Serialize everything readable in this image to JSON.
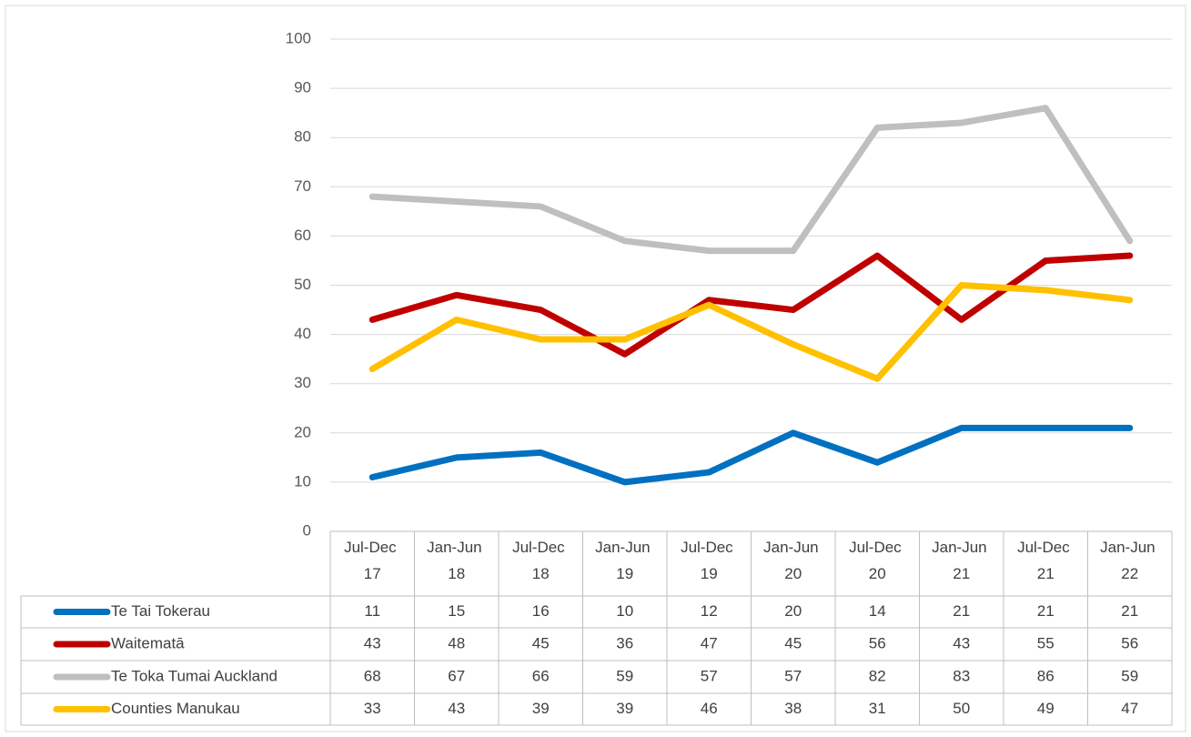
{
  "chart_data": {
    "type": "line",
    "categories": [
      "Jul-Dec 17",
      "Jan-Jun 18",
      "Jul-Dec 18",
      "Jan-Jun 19",
      "Jul-Dec 19",
      "Jan-Jun 20",
      "Jul-Dec 20",
      "Jan-Jun 21",
      "Jul-Dec 21",
      "Jan-Jun 22"
    ],
    "series": [
      {
        "name": "Te Tai Tokerau",
        "color": "#0070c0",
        "values": [
          11,
          15,
          16,
          10,
          12,
          20,
          14,
          21,
          21,
          21
        ]
      },
      {
        "name": "Waitematā",
        "color": "#c00000",
        "values": [
          43,
          48,
          45,
          36,
          47,
          45,
          56,
          43,
          55,
          56
        ]
      },
      {
        "name": "Te Toka Tumai Auckland",
        "color": "#bfbfbf",
        "values": [
          68,
          67,
          66,
          59,
          57,
          57,
          82,
          83,
          86,
          59
        ]
      },
      {
        "name": "Counties Manukau",
        "color": "#ffc000",
        "values": [
          33,
          43,
          39,
          39,
          46,
          38,
          31,
          50,
          49,
          47
        ]
      }
    ],
    "ylim": [
      0,
      100
    ],
    "yticks": [
      0,
      10,
      20,
      30,
      40,
      50,
      60,
      70,
      80,
      90,
      100
    ],
    "grid": true,
    "data_table": true
  }
}
